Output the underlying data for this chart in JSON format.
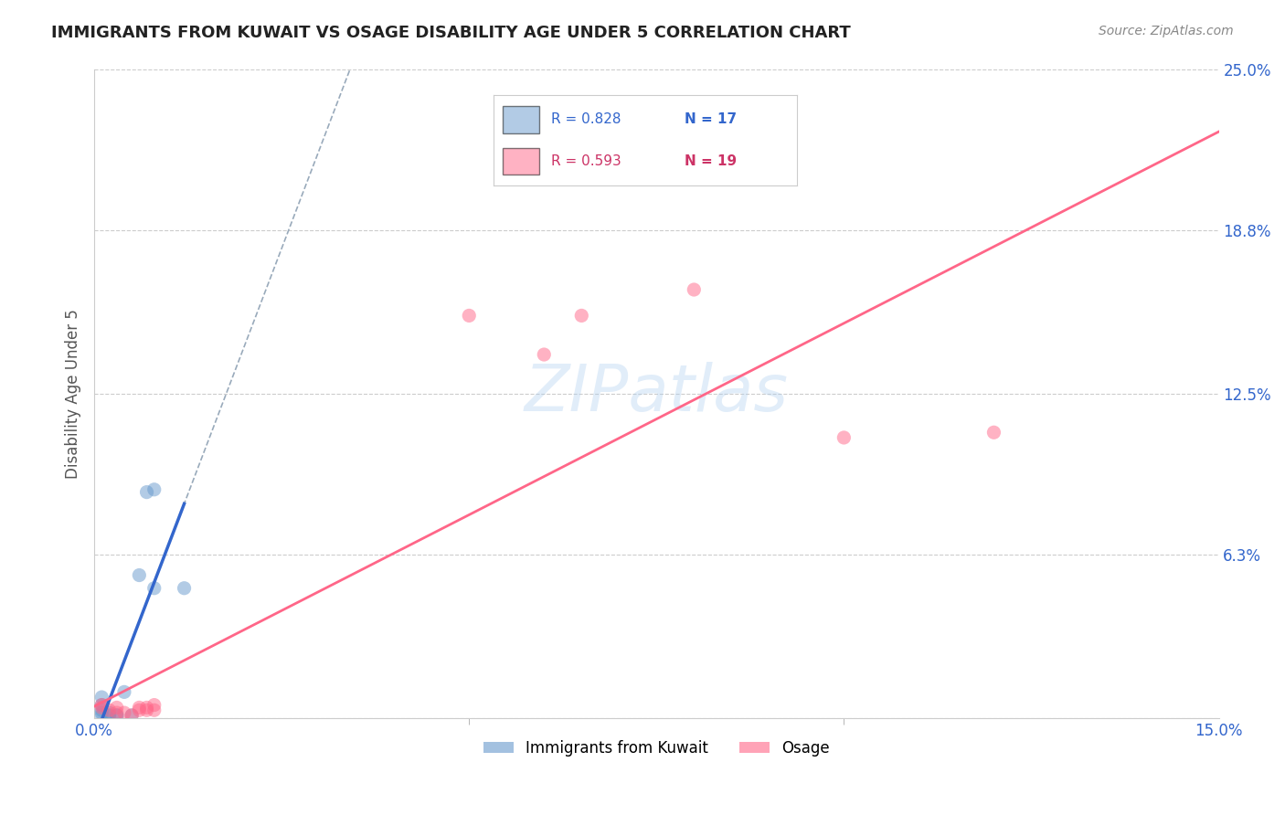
{
  "title": "IMMIGRANTS FROM KUWAIT VS OSAGE DISABILITY AGE UNDER 5 CORRELATION CHART",
  "source": "Source: ZipAtlas.com",
  "ylabel_label": "Disability Age Under 5",
  "legend_blue_r": "R = 0.828",
  "legend_blue_n": "N = 17",
  "legend_pink_r": "R = 0.593",
  "legend_pink_n": "N = 19",
  "blue_color": "#6699CC",
  "pink_color": "#FF6688",
  "blue_scatter": [
    [
      0.001,
      0.005
    ],
    [
      0.001,
      0.003
    ],
    [
      0.001,
      0.002
    ],
    [
      0.001,
      0.001
    ],
    [
      0.001,
      0.008
    ],
    [
      0.002,
      0.002
    ],
    [
      0.002,
      0.001
    ],
    [
      0.002,
      0.001
    ],
    [
      0.003,
      0.001
    ],
    [
      0.003,
      0.001
    ],
    [
      0.004,
      0.01
    ],
    [
      0.005,
      0.001
    ],
    [
      0.006,
      0.055
    ],
    [
      0.007,
      0.087
    ],
    [
      0.008,
      0.088
    ],
    [
      0.008,
      0.05
    ],
    [
      0.012,
      0.05
    ]
  ],
  "pink_scatter": [
    [
      0.001,
      0.005
    ],
    [
      0.001,
      0.004
    ],
    [
      0.002,
      0.003
    ],
    [
      0.003,
      0.002
    ],
    [
      0.003,
      0.004
    ],
    [
      0.004,
      0.002
    ],
    [
      0.005,
      0.001
    ],
    [
      0.006,
      0.004
    ],
    [
      0.006,
      0.003
    ],
    [
      0.007,
      0.004
    ],
    [
      0.007,
      0.003
    ],
    [
      0.008,
      0.005
    ],
    [
      0.008,
      0.003
    ],
    [
      0.05,
      0.155
    ],
    [
      0.06,
      0.14
    ],
    [
      0.065,
      0.155
    ],
    [
      0.08,
      0.165
    ],
    [
      0.1,
      0.108
    ],
    [
      0.12,
      0.11
    ]
  ],
  "watermark": "ZIPatlas",
  "xlim": [
    0.0,
    0.15
  ],
  "ylim": [
    0.0,
    0.25
  ]
}
